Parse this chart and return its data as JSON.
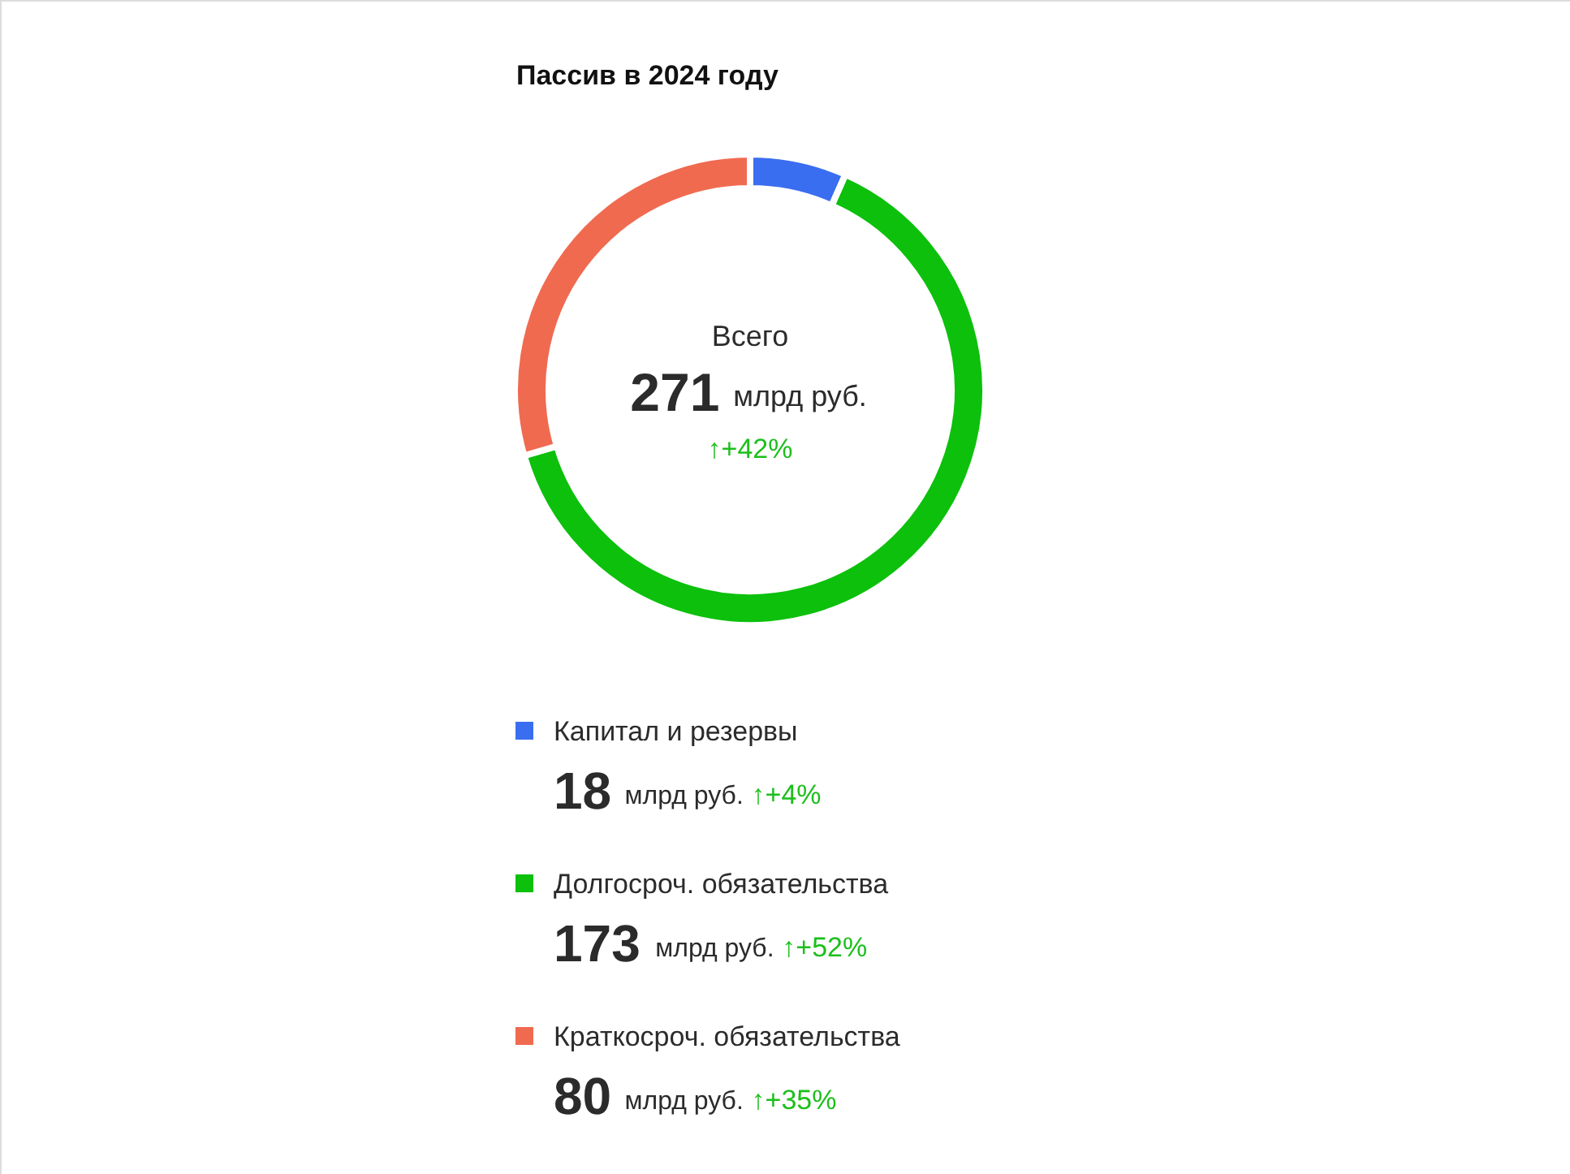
{
  "chart_data": {
    "type": "donut",
    "title": "Пассив в 2024 году",
    "categories": [
      "Капитал и резервы",
      "Долгосроч. обязательства",
      "Краткосроч. обязательства"
    ],
    "values": [
      18,
      173,
      80
    ],
    "colors": [
      "#3a6ef0",
      "#0cc00c",
      "#f06a50"
    ],
    "data_labels": true,
    "annotations": [
      "Всего",
      "271 млрд руб.",
      "↑+42%",
      "млрд руб.",
      "↑+4%",
      "↑+52%",
      "↑+35%"
    ],
    "legend": "bottom"
  }
}
